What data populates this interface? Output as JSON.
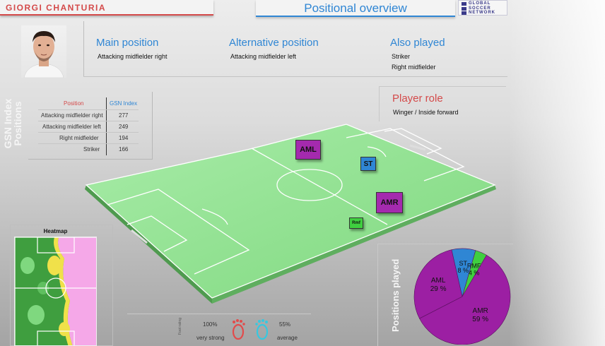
{
  "header": {
    "player_name": "GIORGI CHANTURIA",
    "title": "Positional overview",
    "logo_lines": [
      "GLOBAL",
      "SOCCER",
      "NETWORK"
    ]
  },
  "positions": {
    "main_label": "Main position",
    "main_value": "Attacking midfielder right",
    "alt_label": "Alternative position",
    "alt_value": "Attacking midfielder left",
    "also_label": "Also played",
    "also_values": [
      "Striker",
      "Right midfielder"
    ]
  },
  "gsn_table": {
    "side_title_1": "GSN Index",
    "side_title_2": "Positions",
    "col_position": "Position",
    "col_index": "GSN Index",
    "rows": [
      {
        "position": "Attacking midfielder right",
        "index": "277"
      },
      {
        "position": "Attacking midfielder left",
        "index": "249"
      },
      {
        "position": "Right midfielder",
        "index": "194"
      },
      {
        "position": "Striker",
        "index": "166"
      }
    ]
  },
  "role": {
    "label": "Player role",
    "value": "Winger / Inside forward"
  },
  "pitch_badges": {
    "aml": "AML",
    "st": "ST",
    "amr": "AMR",
    "rmf": "Rmf"
  },
  "heatmap": {
    "title": "Heatmap"
  },
  "legend": {
    "side_label": "Foot rating",
    "strong_pct": "100%",
    "strong_label": "very strong",
    "avg_pct": "55%",
    "avg_label": "average"
  },
  "pie": {
    "side_title": "Positions played",
    "slices": [
      {
        "label": "AMR",
        "pct": "59 %",
        "value": 59,
        "color": "#9c1fa3"
      },
      {
        "label": "AML",
        "pct": "29 %",
        "value": 29,
        "color": "#9c1fa3"
      },
      {
        "label": "ST",
        "pct": "8 %",
        "value": 8,
        "color": "#2f86d4"
      },
      {
        "label": "RMF",
        "pct": "4 %",
        "value": 4,
        "color": "#3fcf3f"
      }
    ]
  },
  "colors": {
    "accent_red": "#d44a4a",
    "accent_blue": "#2f86d4",
    "purple": "#9c1fa3",
    "pitch_green": "#8fe38f"
  }
}
